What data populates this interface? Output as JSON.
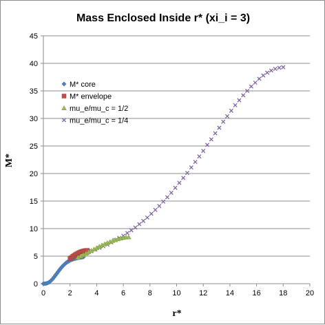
{
  "chart_data": {
    "type": "scatter",
    "title": "Mass Enclosed Inside r* (xi_i = 3)",
    "xlabel": "r*",
    "ylabel": "M*",
    "xlim": [
      0,
      20
    ],
    "ylim": [
      0,
      45
    ],
    "x_ticks": [
      0,
      2,
      4,
      6,
      8,
      10,
      12,
      14,
      16,
      18,
      20
    ],
    "y_ticks": [
      0,
      5,
      10,
      15,
      20,
      25,
      30,
      35,
      40,
      45
    ],
    "grid": "horizontal",
    "legend_position": "left",
    "series": [
      {
        "name": "M* core",
        "color": "#4f81bd",
        "marker": "diamond",
        "x": [
          0.0,
          0.1,
          0.2,
          0.3,
          0.4,
          0.5,
          0.6,
          0.7,
          0.8,
          0.9,
          1.0,
          1.1,
          1.2,
          1.3,
          1.4,
          1.5,
          1.6,
          1.7,
          1.8,
          1.9,
          2.0,
          2.1,
          2.2,
          2.3,
          2.4,
          2.5,
          2.6,
          2.7,
          2.8,
          2.9,
          3.0
        ],
        "y": [
          0.0,
          0.01,
          0.03,
          0.1,
          0.22,
          0.4,
          0.62,
          0.88,
          1.18,
          1.5,
          1.82,
          2.15,
          2.47,
          2.78,
          3.06,
          3.32,
          3.55,
          3.76,
          3.93,
          4.08,
          4.21,
          4.32,
          4.41,
          4.49,
          4.56,
          4.62,
          4.67,
          4.72,
          4.76,
          4.8,
          4.83
        ]
      },
      {
        "name": "M* envelope",
        "color": "#c0504d",
        "marker": "square",
        "x": [
          2.0,
          2.1,
          2.2,
          2.3,
          2.4,
          2.5,
          2.6,
          2.7,
          2.8,
          2.9,
          3.0,
          3.1,
          3.2,
          3.3
        ],
        "y": [
          4.55,
          4.75,
          4.95,
          5.12,
          5.28,
          5.42,
          5.55,
          5.67,
          5.77,
          5.86,
          5.93,
          5.99,
          6.03,
          6.05
        ]
      },
      {
        "name": "mu_e/mu_c = 1/2",
        "color": "#9bbb59",
        "marker": "triangle",
        "x": [
          2.6,
          2.8,
          3.0,
          3.2,
          3.4,
          3.6,
          3.8,
          4.0,
          4.2,
          4.4,
          4.6,
          4.8,
          5.0,
          5.2,
          5.4,
          5.6,
          5.8,
          6.0,
          6.2,
          6.4
        ],
        "y": [
          4.75,
          5.0,
          5.25,
          5.5,
          5.75,
          6.0,
          6.25,
          6.5,
          6.75,
          7.0,
          7.2,
          7.4,
          7.6,
          7.8,
          7.95,
          8.1,
          8.25,
          8.35,
          8.42,
          8.45
        ]
      },
      {
        "name": "mu_e/mu_c = 1/4",
        "color": "#8064a2",
        "marker": "x",
        "x": [
          3.0,
          3.3,
          3.6,
          3.9,
          4.2,
          4.5,
          4.8,
          5.1,
          5.4,
          5.7,
          6.0,
          6.3,
          6.6,
          6.9,
          7.2,
          7.5,
          7.8,
          8.1,
          8.4,
          8.7,
          9.0,
          9.3,
          9.6,
          9.9,
          10.2,
          10.5,
          10.8,
          11.1,
          11.4,
          11.7,
          12.0,
          12.3,
          12.6,
          12.9,
          13.2,
          13.5,
          13.8,
          14.1,
          14.4,
          14.7,
          15.0,
          15.3,
          15.6,
          15.9,
          16.2,
          16.5,
          16.8,
          17.1,
          17.4,
          17.7,
          18.0
        ],
        "y": [
          5.3,
          5.6,
          5.9,
          6.2,
          6.5,
          6.8,
          7.1,
          7.5,
          7.9,
          8.3,
          8.7,
          9.2,
          9.7,
          10.2,
          10.8,
          11.4,
          12.0,
          12.7,
          13.4,
          14.1,
          14.9,
          15.7,
          16.5,
          17.4,
          18.3,
          19.2,
          20.1,
          21.1,
          22.1,
          23.1,
          24.1,
          25.2,
          26.2,
          27.3,
          28.3,
          29.4,
          30.4,
          31.4,
          32.4,
          33.3,
          34.2,
          35.0,
          35.8,
          36.5,
          37.2,
          37.8,
          38.3,
          38.7,
          39.0,
          39.2,
          39.3
        ]
      }
    ]
  }
}
